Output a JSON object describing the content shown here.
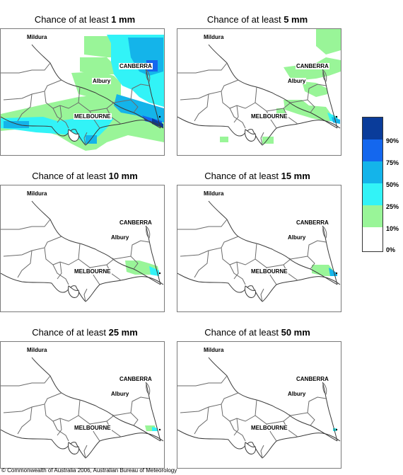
{
  "panels": [
    {
      "prefix": "Chance of at least ",
      "amount": "1 mm"
    },
    {
      "prefix": "Chance of at least ",
      "amount": "5 mm"
    },
    {
      "prefix": "Chance of at least ",
      "amount": "10 mm"
    },
    {
      "prefix": "Chance of at least ",
      "amount": "15 mm"
    },
    {
      "prefix": "Chance of at least ",
      "amount": "25 mm"
    },
    {
      "prefix": "Chance of at least ",
      "amount": "50 mm"
    }
  ],
  "cities": {
    "mildura": "Mildura",
    "canberra": "CANBERRA",
    "albury": "Albury",
    "melbourne": "MELBOURNE"
  },
  "legend": {
    "items": [
      {
        "label": "90%",
        "color": "#0a3c9a"
      },
      {
        "label": "75%",
        "color": "#1467ee"
      },
      {
        "label": "50%",
        "color": "#14b4ea"
      },
      {
        "label": "25%",
        "color": "#32f3f7"
      },
      {
        "label": "10%",
        "color": "#99f598"
      },
      {
        "label": "0%",
        "color": "#ffffff"
      }
    ]
  },
  "copyright": "© Commonwealth of Australia 2006, Australian Bureau of Meteorology"
}
